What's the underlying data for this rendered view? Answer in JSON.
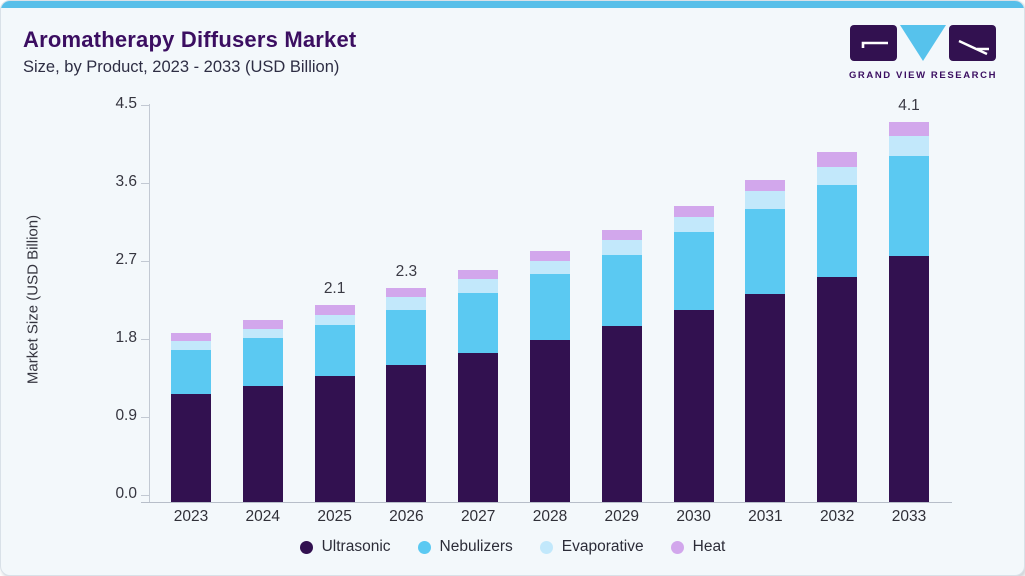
{
  "header": {
    "title": "Aromatherapy Diffusers Market",
    "subtitle": "Size, by Product, 2023 - 2033 (USD Billion)"
  },
  "logo": {
    "text": "GRAND VIEW RESEARCH",
    "mark_color": "#321150",
    "triangle_color": "#56c2ec"
  },
  "chart_data": {
    "type": "bar",
    "stacked": true,
    "title": "Aromatherapy Diffusers Market Size, by Product, 2023 - 2033 (USD Billion)",
    "xlabel": "",
    "ylabel": "Market Size (USD Billion)",
    "categories": [
      "2023",
      "2024",
      "2025",
      "2026",
      "2027",
      "2028",
      "2029",
      "2030",
      "2031",
      "2032",
      "2033"
    ],
    "series": [
      {
        "name": "Ultrasonic",
        "color": "#321150",
        "values": [
          1.16,
          1.25,
          1.35,
          1.47,
          1.6,
          1.74,
          1.89,
          2.06,
          2.24,
          2.42,
          2.64
        ]
      },
      {
        "name": "Nebulizers",
        "color": "#5bc9f2",
        "values": [
          0.47,
          0.51,
          0.55,
          0.6,
          0.65,
          0.71,
          0.77,
          0.84,
          0.91,
          0.99,
          1.08
        ]
      },
      {
        "name": "Evaporative",
        "color": "#c2e8fb",
        "values": [
          0.1,
          0.1,
          0.11,
          0.13,
          0.15,
          0.14,
          0.16,
          0.17,
          0.19,
          0.19,
          0.22
        ]
      },
      {
        "name": "Heat",
        "color": "#d2a7ec",
        "values": [
          0.09,
          0.1,
          0.11,
          0.1,
          0.09,
          0.11,
          0.11,
          0.11,
          0.12,
          0.16,
          0.15
        ]
      }
    ],
    "totals": [
      1.82,
      1.96,
      2.12,
      2.3,
      2.49,
      2.7,
      2.93,
      3.18,
      3.46,
      3.76,
      4.09
    ],
    "value_labels": {
      "2025": "2.1",
      "2026": "2.3",
      "2033": "4.1"
    },
    "yticks": [
      "0.0",
      "0.9",
      "1.8",
      "2.7",
      "3.6",
      "4.5"
    ],
    "ylim": [
      0,
      4.5
    ],
    "grid": false,
    "legend_position": "bottom"
  },
  "colors": {
    "card_background": "#f3f8fb",
    "top_bar": "#58bfe9",
    "title_text": "#3b0e61",
    "axis_line": "#c2c9d3",
    "axis_text": "#35353f"
  }
}
